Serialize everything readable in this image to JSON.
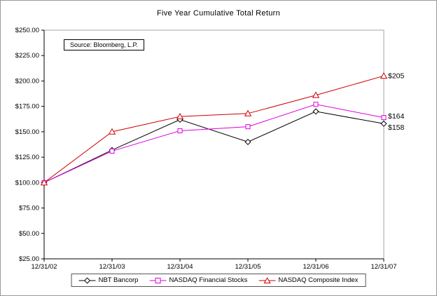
{
  "chart_data": {
    "type": "line",
    "title": "Five Year Cumulative Total Return",
    "source": "Source: Bloomberg, L.P.",
    "categories": [
      "12/31/02",
      "12/31/03",
      "12/31/04",
      "12/31/05",
      "12/31/06",
      "12/31/07"
    ],
    "series": [
      {
        "id": "nbt-bancorp",
        "name": "NBT Bancorp",
        "color": "#000000",
        "marker": "diamond",
        "values": [
          100,
          132,
          162,
          140,
          170,
          158
        ],
        "end_label": "$158",
        "end_label_dy": 5
      },
      {
        "id": "nasdaq-financial-stocks",
        "name": "NASDAQ Financial Stocks",
        "color": "#DD00DD",
        "marker": "square",
        "values": [
          100,
          131,
          151,
          155,
          177,
          164
        ],
        "end_label": "$164",
        "end_label_dy": -2
      },
      {
        "id": "nasdaq-composite-index",
        "name": "NASDAQ Composite Index",
        "color": "#CC0000",
        "marker": "triangle",
        "values": [
          100,
          150,
          165,
          168,
          186,
          205
        ],
        "end_label": "$205",
        "end_label_dy": 0
      }
    ],
    "xlabel": "",
    "ylabel": "",
    "ylim": [
      25,
      250
    ],
    "yticks": [
      250,
      225,
      200,
      175,
      150,
      125,
      100,
      75,
      50,
      25
    ],
    "ytick_labels": [
      "$250.00",
      "$225.00",
      "$200.00",
      "$175.00",
      "$150.00",
      "$125.00",
      "$100.00",
      "$75.00",
      "$50.00",
      "$25.00"
    ],
    "grid": false,
    "legend_position": "bottom"
  }
}
